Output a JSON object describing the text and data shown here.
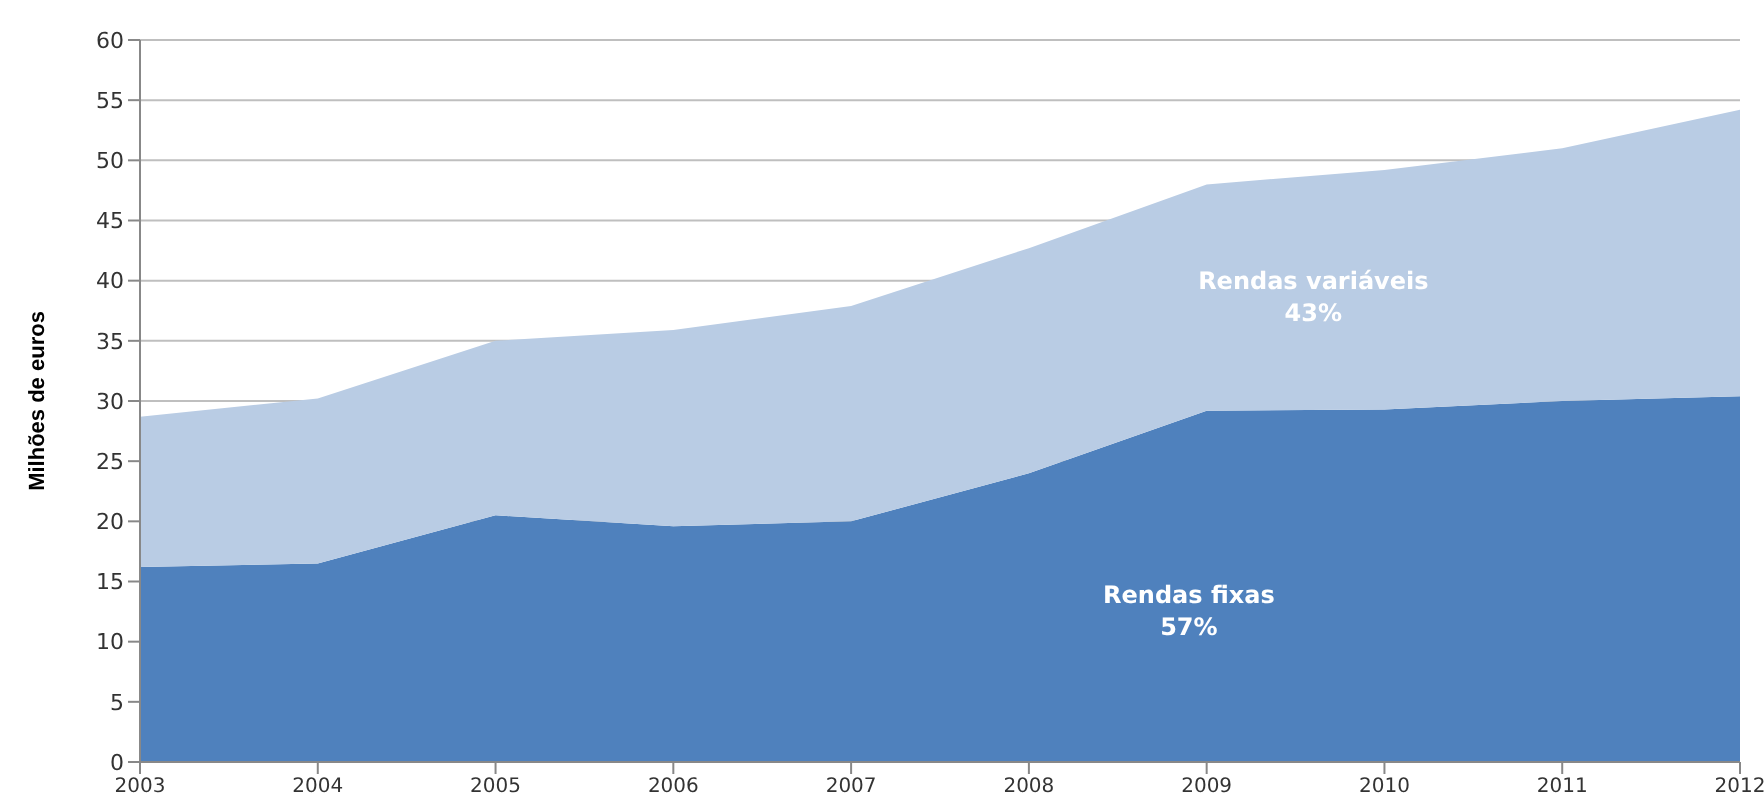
{
  "chart_data": {
    "type": "area",
    "stacked": true,
    "ylabel": "Milhões de euros",
    "categories": [
      "2003",
      "2004",
      "2005",
      "2006",
      "2007",
      "2008",
      "2009",
      "2010",
      "2011",
      "2012"
    ],
    "series": [
      {
        "name": "Rendas fixas",
        "color": "#4f81bd",
        "values": [
          16.2,
          16.5,
          20.5,
          19.6,
          20.0,
          24.0,
          29.2,
          29.3,
          30.0,
          30.4
        ]
      },
      {
        "name": "Rendas variáveis",
        "color": "#b9cce4",
        "values": [
          12.5,
          13.7,
          14.5,
          16.3,
          17.9,
          18.7,
          18.8,
          19.9,
          21.0,
          23.8
        ]
      }
    ],
    "annotations": [
      "57%",
      "43%"
    ],
    "ylim": [
      0,
      60
    ],
    "yticks": [
      0,
      5,
      10,
      15,
      20,
      25,
      30,
      35,
      40,
      45,
      50,
      55,
      60
    ],
    "grid": "y"
  }
}
